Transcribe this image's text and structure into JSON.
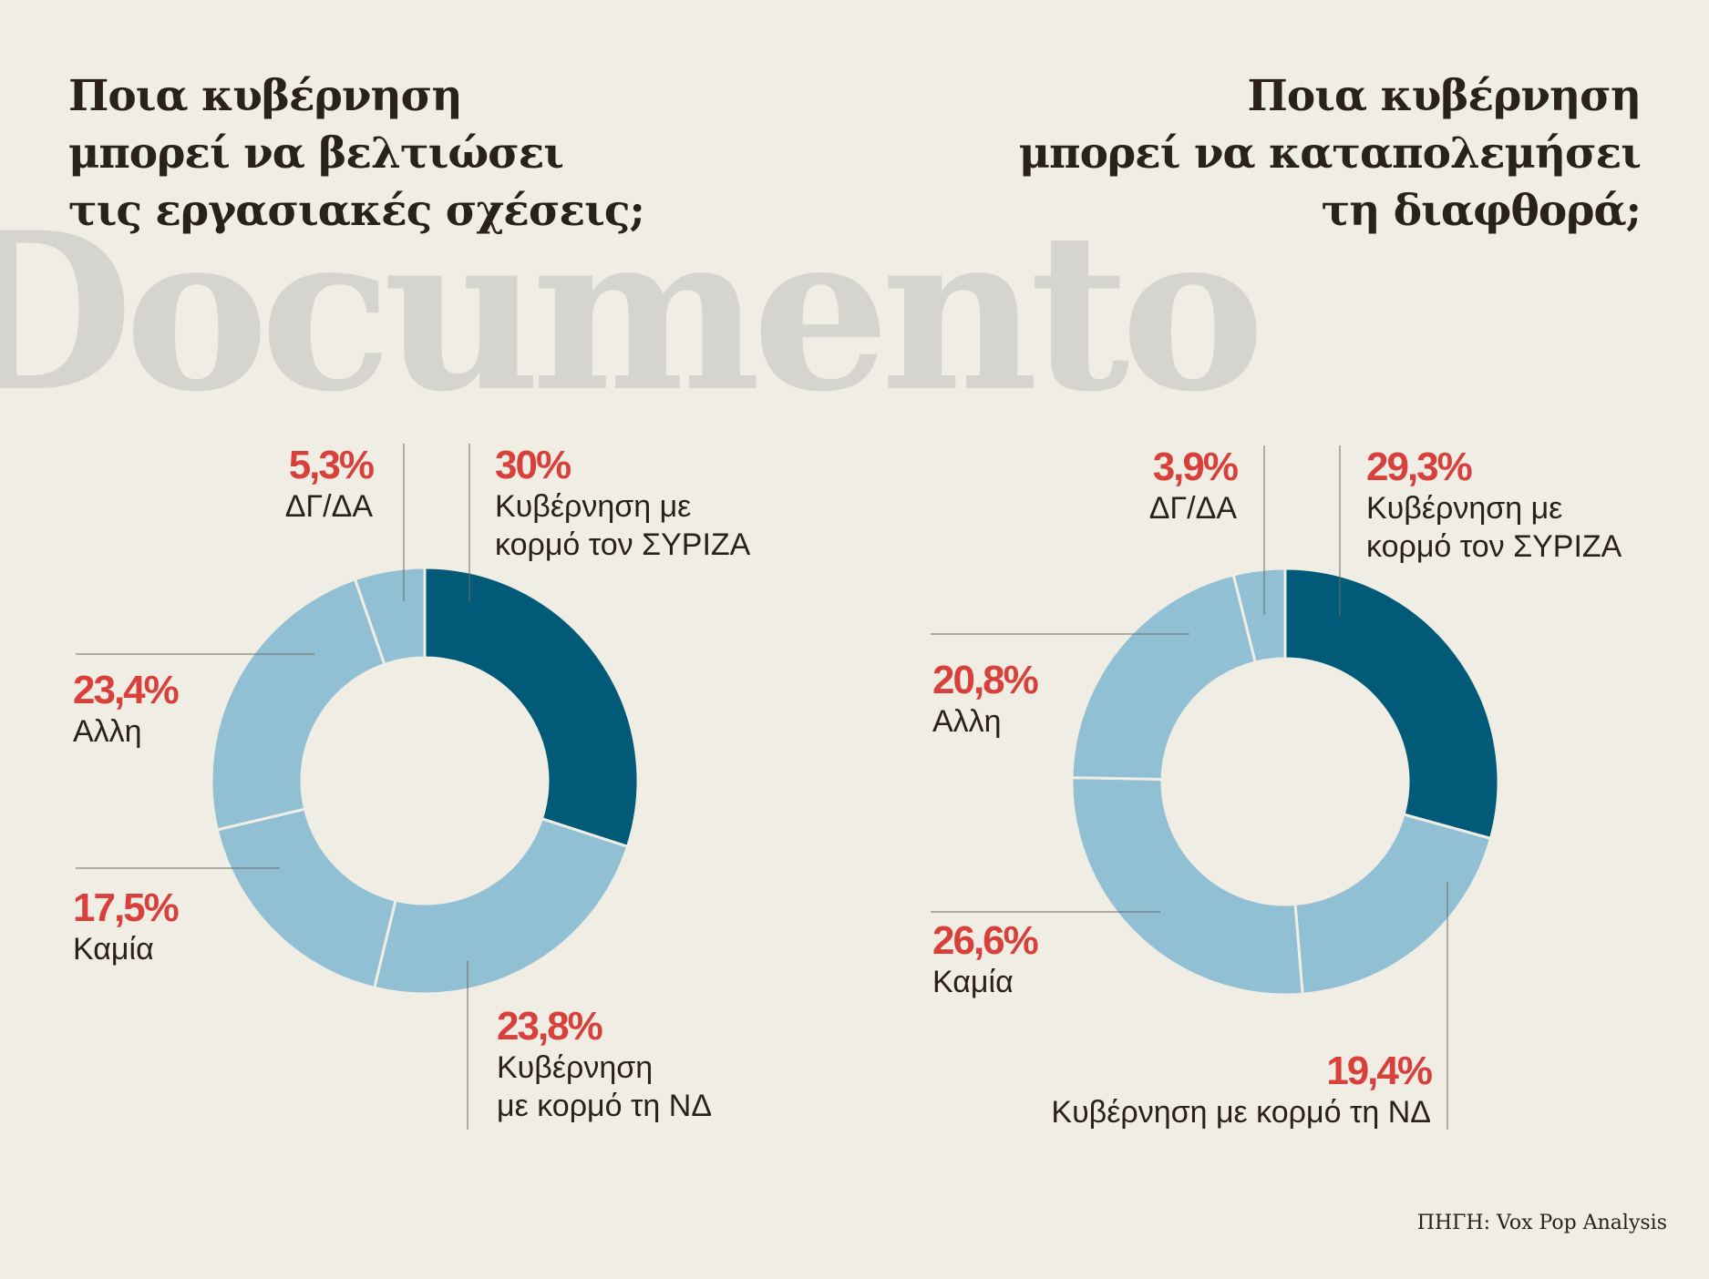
{
  "watermark": "Documento",
  "source": "ΠΗΓΗ: Vox Pop Analysis",
  "colors": {
    "highlight": "#005a78",
    "light": "#91bfd4",
    "value": "#d8403c",
    "text": "#2a2119",
    "background": "#f0ede4"
  },
  "chart_data": [
    {
      "type": "pie",
      "donut": true,
      "title": [
        "Ποια κυβέρνηση",
        "μπορεί να βελτιώσει",
        "τις εργασιακές σχέσεις;"
      ],
      "slices": [
        {
          "value": 30,
          "label_value": "30%",
          "label_lines": [
            "Κυβέρνηση με",
            "κορμό τον ΣΥΡΙΖΑ"
          ],
          "color": "#005a78"
        },
        {
          "value": 23.8,
          "label_value": "23,8%",
          "label_lines": [
            "Κυβέρνηση",
            "με κορμό τη ΝΔ"
          ],
          "color": "#91bfd4"
        },
        {
          "value": 17.5,
          "label_value": "17,5%",
          "label_lines": [
            "Καμία"
          ],
          "color": "#91bfd4"
        },
        {
          "value": 23.4,
          "label_value": "23,4%",
          "label_lines": [
            "Αλλη"
          ],
          "color": "#91bfd4"
        },
        {
          "value": 5.3,
          "label_value": "5,3%",
          "label_lines": [
            "ΔΓ/ΔΑ"
          ],
          "color": "#91bfd4"
        }
      ]
    },
    {
      "type": "pie",
      "donut": true,
      "title": [
        "Ποια κυβέρνηση",
        "μπορεί να καταπολεμήσει",
        "τη διαφθορά;"
      ],
      "slices": [
        {
          "value": 29.3,
          "label_value": "29,3%",
          "label_lines": [
            "Κυβέρνηση με",
            "κορμό τον ΣΥΡΙΖΑ"
          ],
          "color": "#005a78"
        },
        {
          "value": 19.4,
          "label_value": "19,4%",
          "label_lines": [
            "Κυβέρνηση με κορμό τη ΝΔ"
          ],
          "color": "#91bfd4"
        },
        {
          "value": 26.6,
          "label_value": "26,6%",
          "label_lines": [
            "Καμία"
          ],
          "color": "#91bfd4"
        },
        {
          "value": 20.8,
          "label_value": "20,8%",
          "label_lines": [
            "Αλλη"
          ],
          "color": "#91bfd4"
        },
        {
          "value": 3.9,
          "label_value": "3,9%",
          "label_lines": [
            "ΔΓ/ΔΑ"
          ],
          "color": "#91bfd4"
        }
      ]
    }
  ]
}
